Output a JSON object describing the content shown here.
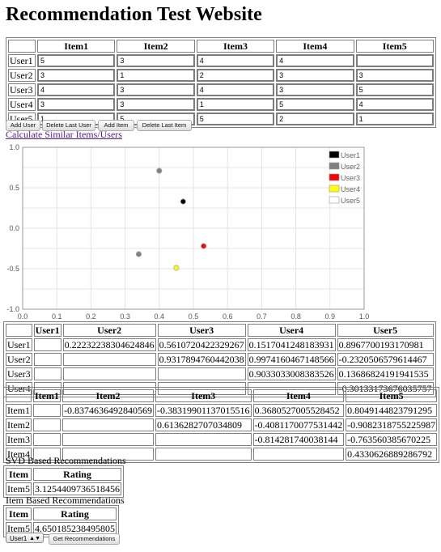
{
  "page": {
    "title": "Recommendation Test Website"
  },
  "ratings": {
    "headers": [
      "Item1",
      "Item2",
      "Item3",
      "Item4",
      "Item5"
    ],
    "rows": [
      {
        "label": "User1",
        "values": [
          "5",
          "3",
          "4",
          "4",
          ""
        ]
      },
      {
        "label": "User2",
        "values": [
          "3",
          "1",
          "2",
          "3",
          "3"
        ]
      },
      {
        "label": "User3",
        "values": [
          "4",
          "3",
          "4",
          "3",
          "5"
        ]
      },
      {
        "label": "User4",
        "values": [
          "3",
          "3",
          "1",
          "5",
          "4"
        ]
      },
      {
        "label": "User5",
        "values": [
          "1",
          "5",
          "5",
          "2",
          "1"
        ]
      }
    ]
  },
  "buttons": {
    "add_user": "Add User",
    "delete_last_user": "Delete Last User",
    "add_item": "Add Item",
    "delete_last_item": "Delete Last Item",
    "get_recommendations": "Get Recommendations"
  },
  "calc_link": "Calculate Similar Items/Users",
  "chart_data": {
    "type": "scatter",
    "xlim": [
      0.0,
      1.0
    ],
    "ylim": [
      -1.0,
      1.0
    ],
    "x_ticks": [
      "0.0",
      "0.1",
      "0.2",
      "0.3",
      "0.4",
      "0.5",
      "0.6",
      "0.7",
      "0.8",
      "0.9",
      "1.0"
    ],
    "y_ticks": [
      "1.0",
      "0.5",
      "0.0",
      "-0.5",
      "-1.0"
    ],
    "grid": true,
    "legend_position": "top-right",
    "series": [
      {
        "name": "User1",
        "color": "#000000",
        "x": 0.47,
        "y": 0.33
      },
      {
        "name": "User2",
        "color": "#808080",
        "x": 0.4,
        "y": 0.71
      },
      {
        "name": "User3",
        "color": "#ff0000",
        "x": 0.53,
        "y": -0.22
      },
      {
        "name": "User4",
        "color": "#ffff00",
        "x": 0.45,
        "y": -0.49
      },
      {
        "name": "User5",
        "color": "#ffffff",
        "x": 0.34,
        "y": -0.32
      }
    ],
    "user5_point_color": "#808080"
  },
  "user_similarity": {
    "headers": [
      "User1",
      "User2",
      "User3",
      "User4",
      "User5"
    ],
    "rows": [
      {
        "label": "User1",
        "values": [
          "",
          "0.22232238304624846",
          "0.5610720422329267",
          "0.1517041248183931",
          "0.8967700193170981"
        ]
      },
      {
        "label": "User2",
        "values": [
          "",
          "",
          "0.9317894760442038",
          "0.9974160467148566",
          "-0.2320506579614467"
        ]
      },
      {
        "label": "User3",
        "values": [
          "",
          "",
          "",
          "0.9033033008383526",
          "0.13686824191941535"
        ]
      },
      {
        "label": "User4",
        "values": [
          "",
          "",
          "",
          "",
          "-0.30133173676035757"
        ]
      }
    ]
  },
  "item_similarity": {
    "headers": [
      "Item1",
      "Item2",
      "Item3",
      "Item4",
      "Item5"
    ],
    "rows": [
      {
        "label": "Item1",
        "values": [
          "",
          "-0.8374636492840569",
          "-0.38319901137015516",
          "0.3680527005528452",
          "0.8049144823791295"
        ]
      },
      {
        "label": "Item2",
        "values": [
          "",
          "",
          "0.6136282707034809",
          "-0.4081170077531442",
          "-0.9082318755225987"
        ]
      },
      {
        "label": "Item3",
        "values": [
          "",
          "",
          "",
          "-0.814281740038144",
          "-0.763560385670225"
        ]
      },
      {
        "label": "Item4",
        "values": [
          "",
          "",
          "",
          "",
          "0.4330626889286792"
        ]
      }
    ]
  },
  "svd": {
    "title": "SVD Based Recommendations",
    "headers": [
      "Item",
      "Rating"
    ],
    "rows": [
      {
        "item": "Item5",
        "rating": "3.1254409736518456"
      }
    ]
  },
  "item_based": {
    "title": "Item Based Recommendations",
    "headers": [
      "Item",
      "Rating"
    ],
    "rows": [
      {
        "item": "Item5",
        "rating": "4.650185238495805"
      }
    ]
  },
  "user_select": {
    "value": "User1"
  }
}
